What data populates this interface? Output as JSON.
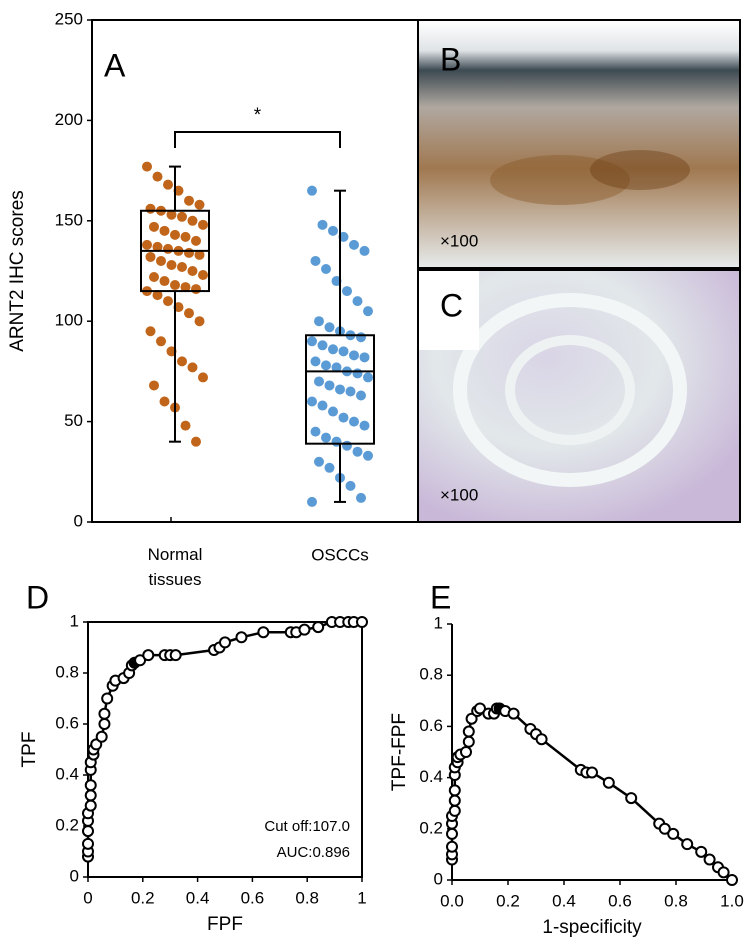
{
  "chart_data": [
    {
      "type": "box",
      "panel_label": "A",
      "ylabel": "ARNT2 IHC scores",
      "annotation": "*",
      "categories": [
        "Normal tissues",
        "OSCCs"
      ],
      "ylim": [
        0,
        250
      ],
      "yticks": [
        0,
        50,
        100,
        150,
        200,
        250
      ],
      "boxes": [
        {
          "color": "#c0651a",
          "min": 40,
          "q1": 115,
          "median": 135,
          "q3": 155,
          "max": 177,
          "points": [
            177,
            172,
            168,
            165,
            160,
            158,
            156,
            155,
            153,
            152,
            150,
            148,
            147,
            145,
            143,
            142,
            140,
            138,
            137,
            136,
            135,
            134,
            133,
            132,
            130,
            128,
            127,
            125,
            123,
            122,
            120,
            118,
            117,
            116,
            115,
            113,
            110,
            107,
            104,
            100,
            95,
            90,
            85,
            80,
            77,
            72,
            68,
            60,
            57,
            48,
            40
          ]
        },
        {
          "color": "#5b9bd5",
          "min": 10,
          "q1": 39,
          "median": 75,
          "q3": 93,
          "max": 165,
          "points": [
            165,
            148,
            145,
            142,
            138,
            135,
            130,
            126,
            120,
            115,
            110,
            105,
            100,
            97,
            95,
            93,
            92,
            90,
            88,
            86,
            85,
            83,
            82,
            80,
            78,
            77,
            75,
            74,
            72,
            70,
            68,
            66,
            65,
            63,
            60,
            58,
            55,
            52,
            50,
            48,
            45,
            42,
            40,
            38,
            35,
            33,
            30,
            27,
            22,
            18,
            12,
            10
          ]
        }
      ]
    },
    {
      "type": "line",
      "panel_label": "D",
      "xlabel": "FPF",
      "ylabel": "TPF",
      "annotations": [
        "Cut off:107.0",
        "AUC:0.896"
      ],
      "xlim": [
        0,
        1
      ],
      "ylim": [
        0,
        1
      ],
      "xticks": [
        0,
        0.2,
        0.4,
        0.6,
        0.8,
        1
      ],
      "yticks": [
        0,
        0.2,
        0.4,
        0.6,
        0.8,
        1
      ],
      "color": "#000000",
      "filled_index": 23,
      "x": [
        0,
        0,
        0,
        0,
        0,
        0,
        0.01,
        0.01,
        0.01,
        0.01,
        0.01,
        0.02,
        0.02,
        0.03,
        0.05,
        0.06,
        0.06,
        0.07,
        0.09,
        0.1,
        0.13,
        0.15,
        0.16,
        0.17,
        0.19,
        0.22,
        0.28,
        0.3,
        0.32,
        0.46,
        0.48,
        0.5,
        0.56,
        0.64,
        0.74,
        0.76,
        0.79,
        0.84,
        0.89,
        0.92,
        0.95,
        0.97,
        1
      ],
      "values": [
        0.08,
        0.1,
        0.13,
        0.18,
        0.22,
        0.25,
        0.28,
        0.32,
        0.36,
        0.42,
        0.45,
        0.48,
        0.5,
        0.52,
        0.55,
        0.6,
        0.64,
        0.7,
        0.75,
        0.77,
        0.78,
        0.8,
        0.83,
        0.84,
        0.85,
        0.87,
        0.87,
        0.87,
        0.87,
        0.89,
        0.9,
        0.92,
        0.94,
        0.96,
        0.96,
        0.96,
        0.97,
        0.98,
        1,
        1,
        1,
        1,
        1
      ]
    },
    {
      "type": "line",
      "panel_label": "E",
      "xlabel": "1-specificity",
      "ylabel": "TPF-FPF",
      "xlim": [
        0,
        1
      ],
      "ylim": [
        0,
        1
      ],
      "xticks": [
        {
          "value": 0,
          "label": "0.0"
        },
        0.2,
        0.4,
        0.6,
        0.8,
        {
          "value": 1,
          "label": "1.0"
        }
      ],
      "yticks": [
        0,
        0.2,
        0.4,
        0.6,
        0.8,
        1
      ],
      "color": "#000000",
      "filled_index": 23,
      "x": [
        0,
        0,
        0,
        0,
        0,
        0,
        0.01,
        0.01,
        0.01,
        0.01,
        0.01,
        0.02,
        0.02,
        0.03,
        0.05,
        0.06,
        0.06,
        0.07,
        0.09,
        0.1,
        0.13,
        0.15,
        0.16,
        0.17,
        0.19,
        0.22,
        0.28,
        0.3,
        0.32,
        0.46,
        0.48,
        0.5,
        0.56,
        0.64,
        0.74,
        0.76,
        0.79,
        0.84,
        0.89,
        0.92,
        0.95,
        0.97,
        1
      ],
      "values": [
        0.08,
        0.1,
        0.13,
        0.18,
        0.22,
        0.25,
        0.27,
        0.31,
        0.35,
        0.41,
        0.44,
        0.46,
        0.48,
        0.49,
        0.5,
        0.54,
        0.58,
        0.63,
        0.66,
        0.67,
        0.65,
        0.65,
        0.67,
        0.67,
        0.66,
        0.65,
        0.59,
        0.57,
        0.55,
        0.43,
        0.42,
        0.42,
        0.38,
        0.32,
        0.22,
        0.2,
        0.18,
        0.14,
        0.11,
        0.08,
        0.05,
        0.03,
        0
      ]
    }
  ],
  "images": [
    {
      "label": "B",
      "magnification": "×100"
    },
    {
      "label": "C",
      "magnification": "×100"
    }
  ]
}
